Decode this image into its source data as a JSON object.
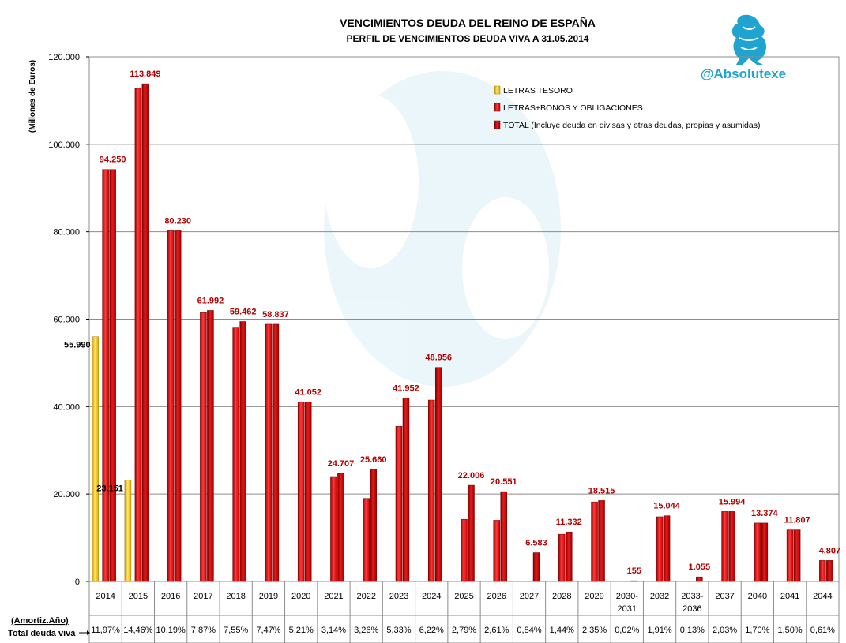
{
  "chart_data": {
    "type": "bar",
    "title": "VENCIMIENTOS DEUDA DEL REINO DE ESPAÑA",
    "subtitle": "PERFIL DE VENCIMIENTOS DEUDA VIVA A 31.05.2014",
    "ylabel": "(Millones de Euros)",
    "ylim": [
      0,
      120000
    ],
    "yticks": [
      0,
      20000,
      40000,
      60000,
      80000,
      100000,
      120000
    ],
    "ytick_labels": [
      "0",
      "20.000",
      "40.000",
      "60.000",
      "80.000",
      "100.000",
      "120.000"
    ],
    "grid": true,
    "legend_position": "top-right",
    "categories": [
      "2014",
      "2015",
      "2016",
      "2017",
      "2018",
      "2019",
      "2020",
      "2021",
      "2022",
      "2023",
      "2024",
      "2025",
      "2026",
      "2027",
      "2028",
      "2029",
      "2030-2031",
      "2032",
      "2033-2036",
      "2037",
      "2040",
      "2041",
      "2044"
    ],
    "series": [
      {
        "name": "LETRAS TESORO",
        "color": "#f2c200",
        "values": [
          55990,
          23151,
          null,
          null,
          null,
          null,
          null,
          null,
          null,
          null,
          null,
          null,
          null,
          null,
          null,
          null,
          null,
          null,
          null,
          null,
          null,
          null,
          null
        ],
        "labels": [
          "55.990",
          "23.151",
          "",
          "",
          "",
          "",
          "",
          "",
          "",
          "",
          "",
          "",
          "",
          "",
          "",
          "",
          "",
          "",
          "",
          "",
          "",
          "",
          ""
        ]
      },
      {
        "name": "LETRAS+BONOS Y OBLIGACIONES",
        "color": "#e00000",
        "values": [
          94250,
          112800,
          80230,
          61500,
          58000,
          58837,
          41052,
          24000,
          19000,
          35500,
          41500,
          14200,
          14000,
          null,
          10800,
          18200,
          null,
          14800,
          null,
          15994,
          13374,
          11807,
          4807
        ],
        "labels": [
          "",
          "",
          "",
          "",
          "",
          "",
          "",
          "",
          "",
          "",
          "",
          "",
          "",
          "",
          "",
          "",
          "",
          "",
          "",
          "",
          "",
          "",
          ""
        ]
      },
      {
        "name": "TOTAL (Incluye deuda en divisas y otras deudas, propias y asumidas)",
        "color": "#c40000",
        "values": [
          94250,
          113849,
          80230,
          61992,
          59462,
          58837,
          41052,
          24707,
          25660,
          41952,
          48956,
          22006,
          20551,
          6583,
          11332,
          18515,
          155,
          15044,
          1055,
          15994,
          13374,
          11807,
          4807
        ],
        "labels": [
          "94.250",
          "113.849",
          "80.230",
          "61.992",
          "59.462",
          "58.837",
          "41.052",
          "24.707",
          "25.660",
          "41.952",
          "48.956",
          "22.006",
          "20.551",
          "6.583",
          "11.332",
          "18.515",
          "155",
          "15.044",
          "1.055",
          "15.994",
          "13.374",
          "11.807",
          "4.807"
        ]
      }
    ],
    "row_labels": {
      "amortiz": "(Amortiz.Año)",
      "total": "Total deuda viva"
    },
    "percentages": [
      "11,97%",
      "14,46%",
      "10,19%",
      "7,87%",
      "7,55%",
      "7,47%",
      "5,21%",
      "3,14%",
      "3,26%",
      "5,33%",
      "6,22%",
      "2,79%",
      "2,61%",
      "0,84%",
      "1,44%",
      "2,35%",
      "0,02%",
      "1,91%",
      "0,13%",
      "2,03%",
      "1,70%",
      "1,50%",
      "0,61%"
    ]
  },
  "brand": "@Absolutexe",
  "logo_icon": "griffin-logo-icon",
  "colors": {
    "accent": "#1fa3d0",
    "label_red": "#b00000"
  }
}
